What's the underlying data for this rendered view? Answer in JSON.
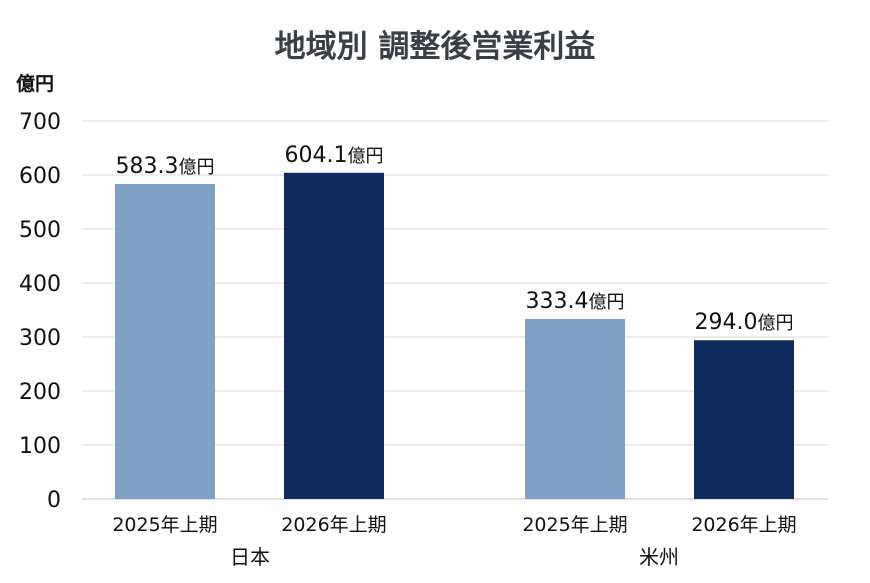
{
  "chart_data": {
    "type": "bar",
    "title": "地域別 調整後営業利益",
    "ylabel": "億円",
    "xlabel": "",
    "ylim": [
      0,
      700
    ],
    "yticks": [
      0,
      100,
      200,
      300,
      400,
      500,
      600,
      700
    ],
    "grid": true,
    "legend": "none",
    "groups": [
      {
        "label": "日本",
        "categories": [
          "2025年上期",
          "2026年上期"
        ],
        "values": [
          583.3,
          604.1
        ],
        "value_labels": [
          "583.3",
          "604.1"
        ]
      },
      {
        "label": "米州",
        "categories": [
          "2025年上期",
          "2026年上期"
        ],
        "values": [
          333.4,
          294.0
        ],
        "value_labels": [
          "333.4",
          "294.0"
        ]
      }
    ],
    "data_label_unit": "億円",
    "colors": {
      "2025年上期": "#7fa1c4",
      "2026年上期": "#0d2a5a"
    }
  }
}
